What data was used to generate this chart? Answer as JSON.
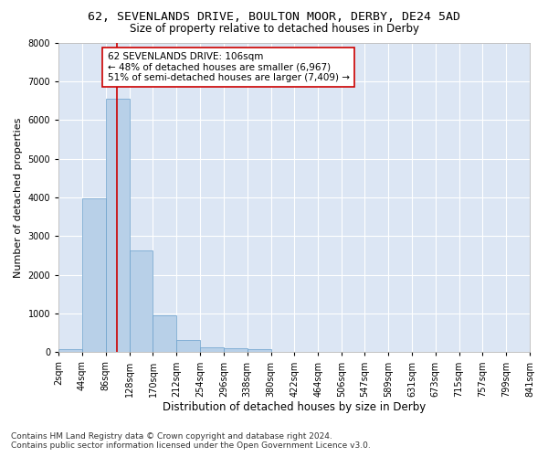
{
  "title_line1": "62, SEVENLANDS DRIVE, BOULTON MOOR, DERBY, DE24 5AD",
  "title_line2": "Size of property relative to detached houses in Derby",
  "xlabel": "Distribution of detached houses by size in Derby",
  "ylabel": "Number of detached properties",
  "bar_color": "#b8d0e8",
  "bar_edge_color": "#6aa0cc",
  "background_color": "#dce6f4",
  "grid_color": "white",
  "bin_edges": [
    2,
    44,
    86,
    128,
    170,
    212,
    254,
    296,
    338,
    380,
    422,
    464,
    506,
    547,
    589,
    631,
    673,
    715,
    757,
    799,
    841
  ],
  "bar_heights": [
    75,
    3980,
    6550,
    2620,
    960,
    310,
    130,
    100,
    75,
    0,
    0,
    0,
    0,
    0,
    0,
    0,
    0,
    0,
    0,
    0
  ],
  "property_size": 106,
  "red_line_color": "#cc0000",
  "annotation_text": "62 SEVENLANDS DRIVE: 106sqm\n← 48% of detached houses are smaller (6,967)\n51% of semi-detached houses are larger (7,409) →",
  "annotation_box_color": "white",
  "annotation_box_edge_color": "#cc0000",
  "ylim": [
    0,
    8000
  ],
  "yticks": [
    0,
    1000,
    2000,
    3000,
    4000,
    5000,
    6000,
    7000,
    8000
  ],
  "tick_labels": [
    "2sqm",
    "44sqm",
    "86sqm",
    "128sqm",
    "170sqm",
    "212sqm",
    "254sqm",
    "296sqm",
    "338sqm",
    "380sqm",
    "422sqm",
    "464sqm",
    "506sqm",
    "547sqm",
    "589sqm",
    "631sqm",
    "673sqm",
    "715sqm",
    "757sqm",
    "799sqm",
    "841sqm"
  ],
  "footnote": "Contains HM Land Registry data © Crown copyright and database right 2024.\nContains public sector information licensed under the Open Government Licence v3.0.",
  "title_fontsize": 9.5,
  "subtitle_fontsize": 8.5,
  "xlabel_fontsize": 8.5,
  "ylabel_fontsize": 8,
  "tick_fontsize": 7,
  "annotation_fontsize": 7.5,
  "footnote_fontsize": 6.5
}
